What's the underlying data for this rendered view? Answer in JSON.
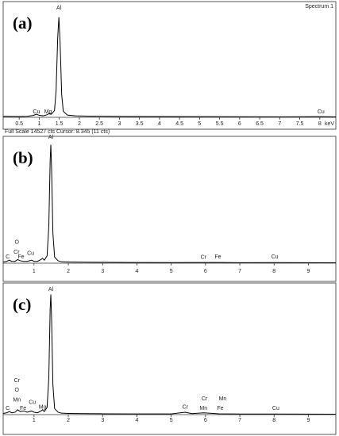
{
  "chart_data": [
    {
      "type": "line",
      "panel_label": "(a)",
      "spectrum_label": "Spectrum 1",
      "status_text": "Full Scale 14527 cts Cursor: 8.345 (11 cts)",
      "x_label": "keV",
      "x": [
        0.1,
        0.3,
        0.5,
        0.7,
        0.85,
        0.93,
        1.0,
        1.1,
        1.2,
        1.25,
        1.3,
        1.38,
        1.42,
        1.46,
        1.49,
        1.52,
        1.56,
        1.6,
        1.7,
        1.9,
        2.2,
        2.6,
        3,
        4,
        5,
        6,
        7,
        8,
        8.4
      ],
      "values": [
        150,
        120,
        110,
        130,
        250,
        420,
        260,
        200,
        350,
        520,
        400,
        900,
        3500,
        10500,
        13300,
        10000,
        3000,
        800,
        300,
        200,
        160,
        140,
        120,
        100,
        90,
        80,
        70,
        90,
        60
      ],
      "color": "#000000",
      "xlim": [
        0.1,
        8.4
      ],
      "ylim": [
        0,
        14527
      ],
      "xticks": [
        0.5,
        1,
        1.5,
        2,
        2.5,
        3,
        3.5,
        4,
        4.5,
        5,
        5.5,
        6,
        6.5,
        7,
        7.5,
        8
      ],
      "peak_labels": [
        {
          "text": "Al",
          "x": 1.49,
          "y": 14300
        },
        {
          "text": "Cu",
          "x": 0.93,
          "y": 526
        },
        {
          "text": "Mg",
          "x": 1.22,
          "y": 526
        },
        {
          "text": "Cu",
          "x": 8.03,
          "y": 526
        }
      ]
    },
    {
      "type": "line",
      "panel_label": "(b)",
      "x": [
        0.1,
        0.2,
        0.28,
        0.35,
        0.45,
        0.52,
        0.6,
        0.7,
        0.8,
        0.93,
        1.0,
        1.1,
        1.2,
        1.25,
        1.3,
        1.38,
        1.43,
        1.47,
        1.49,
        1.51,
        1.55,
        1.6,
        1.7,
        1.8,
        2,
        2.5,
        3,
        4,
        5,
        5.9,
        6.4,
        7,
        8,
        9,
        9.8
      ],
      "values": [
        1,
        1.5,
        2.5,
        1.5,
        1.5,
        3,
        2,
        1.5,
        1.5,
        2.5,
        1.5,
        1.5,
        3,
        4,
        2.5,
        6,
        30,
        85,
        98,
        80,
        25,
        5,
        2,
        1.2,
        1,
        0.8,
        0.7,
        0.6,
        0.5,
        0.6,
        0.6,
        0.4,
        0.5,
        0.4,
        0.3
      ],
      "color": "#000000",
      "xlim": [
        0.1,
        9.8
      ],
      "ylim": [
        0,
        105
      ],
      "xticks": [
        1,
        2,
        3,
        4,
        5,
        6,
        7,
        8,
        9
      ],
      "peak_labels": [
        {
          "text": "Al",
          "x": 1.49,
          "y": 103
        },
        {
          "text": "O",
          "x": 0.5,
          "y": 16
        },
        {
          "text": "Cr",
          "x": 0.49,
          "y": 8
        },
        {
          "text": "C",
          "x": 0.23,
          "y": 4
        },
        {
          "text": "Fe",
          "x": 0.62,
          "y": 4
        },
        {
          "text": "Cu",
          "x": 0.9,
          "y": 7
        },
        {
          "text": "Cr",
          "x": 5.94,
          "y": 3.5
        },
        {
          "text": "Fe",
          "x": 6.36,
          "y": 4
        },
        {
          "text": "Cu",
          "x": 8.02,
          "y": 4
        }
      ]
    },
    {
      "type": "line",
      "panel_label": "(c)",
      "x": [
        0.1,
        0.2,
        0.28,
        0.35,
        0.45,
        0.52,
        0.6,
        0.7,
        0.8,
        0.93,
        1.0,
        1.1,
        1.2,
        1.25,
        1.3,
        1.38,
        1.43,
        1.47,
        1.49,
        1.51,
        1.55,
        1.6,
        1.7,
        1.8,
        2,
        2.5,
        3,
        4,
        5,
        5.41,
        5.6,
        5.94,
        6.4,
        7,
        8,
        9,
        9.8
      ],
      "values": [
        1,
        1.5,
        2.5,
        1.5,
        2,
        4,
        2.5,
        3,
        2,
        3,
        2,
        1.5,
        3,
        4,
        2.5,
        6,
        30,
        88,
        100,
        82,
        25,
        5,
        2,
        1.2,
        1,
        0.8,
        0.7,
        0.6,
        0.6,
        2,
        0.8,
        1.5,
        0.7,
        0.5,
        0.5,
        0.4,
        0.3
      ],
      "color": "#000000",
      "xlim": [
        0.1,
        9.8
      ],
      "ylim": [
        0,
        105
      ],
      "xticks": [
        1,
        2,
        3,
        4,
        5,
        6,
        7,
        8,
        9
      ],
      "peak_labels": [
        {
          "text": "Al",
          "x": 1.49,
          "y": 103
        },
        {
          "text": "Cr",
          "x": 0.5,
          "y": 27
        },
        {
          "text": "O",
          "x": 0.5,
          "y": 19
        },
        {
          "text": "Mn",
          "x": 0.5,
          "y": 11
        },
        {
          "text": "C",
          "x": 0.23,
          "y": 4
        },
        {
          "text": "Fe",
          "x": 0.68,
          "y": 4
        },
        {
          "text": "Cu",
          "x": 0.95,
          "y": 9
        },
        {
          "text": "Mg",
          "x": 1.25,
          "y": 5
        },
        {
          "text": "Cr",
          "x": 5.41,
          "y": 5
        },
        {
          "text": "Cr",
          "x": 5.97,
          "y": 12
        },
        {
          "text": "Mn",
          "x": 5.94,
          "y": 4
        },
        {
          "text": "Mn",
          "x": 6.5,
          "y": 12
        },
        {
          "text": "Fe",
          "x": 6.43,
          "y": 4
        },
        {
          "text": "Cu",
          "x": 8.05,
          "y": 4
        }
      ]
    }
  ]
}
